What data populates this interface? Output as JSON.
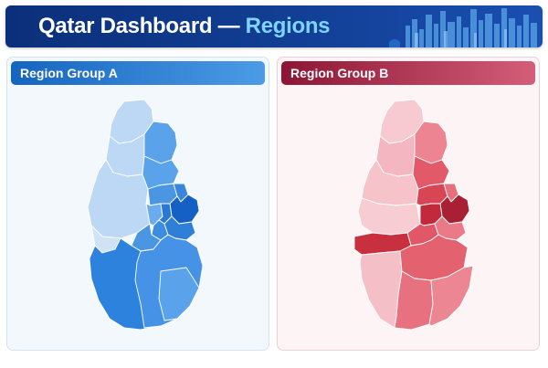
{
  "header": {
    "title_main": "Qatar Dashboard — ",
    "title_accent": "Regions"
  },
  "panels": [
    {
      "label": "Region Group A"
    },
    {
      "label": "Region Group B"
    }
  ],
  "colors": {
    "header_bg": "#123f95",
    "accent_text": "#7fd4ff",
    "group_a_light": "#bcd8f4",
    "group_a_mid": "#5aa3ea",
    "group_a_dark": "#1f6fd0",
    "group_b_light": "#f7c4cd",
    "group_b_mid": "#e8707e",
    "group_b_dark": "#c22a3c"
  }
}
